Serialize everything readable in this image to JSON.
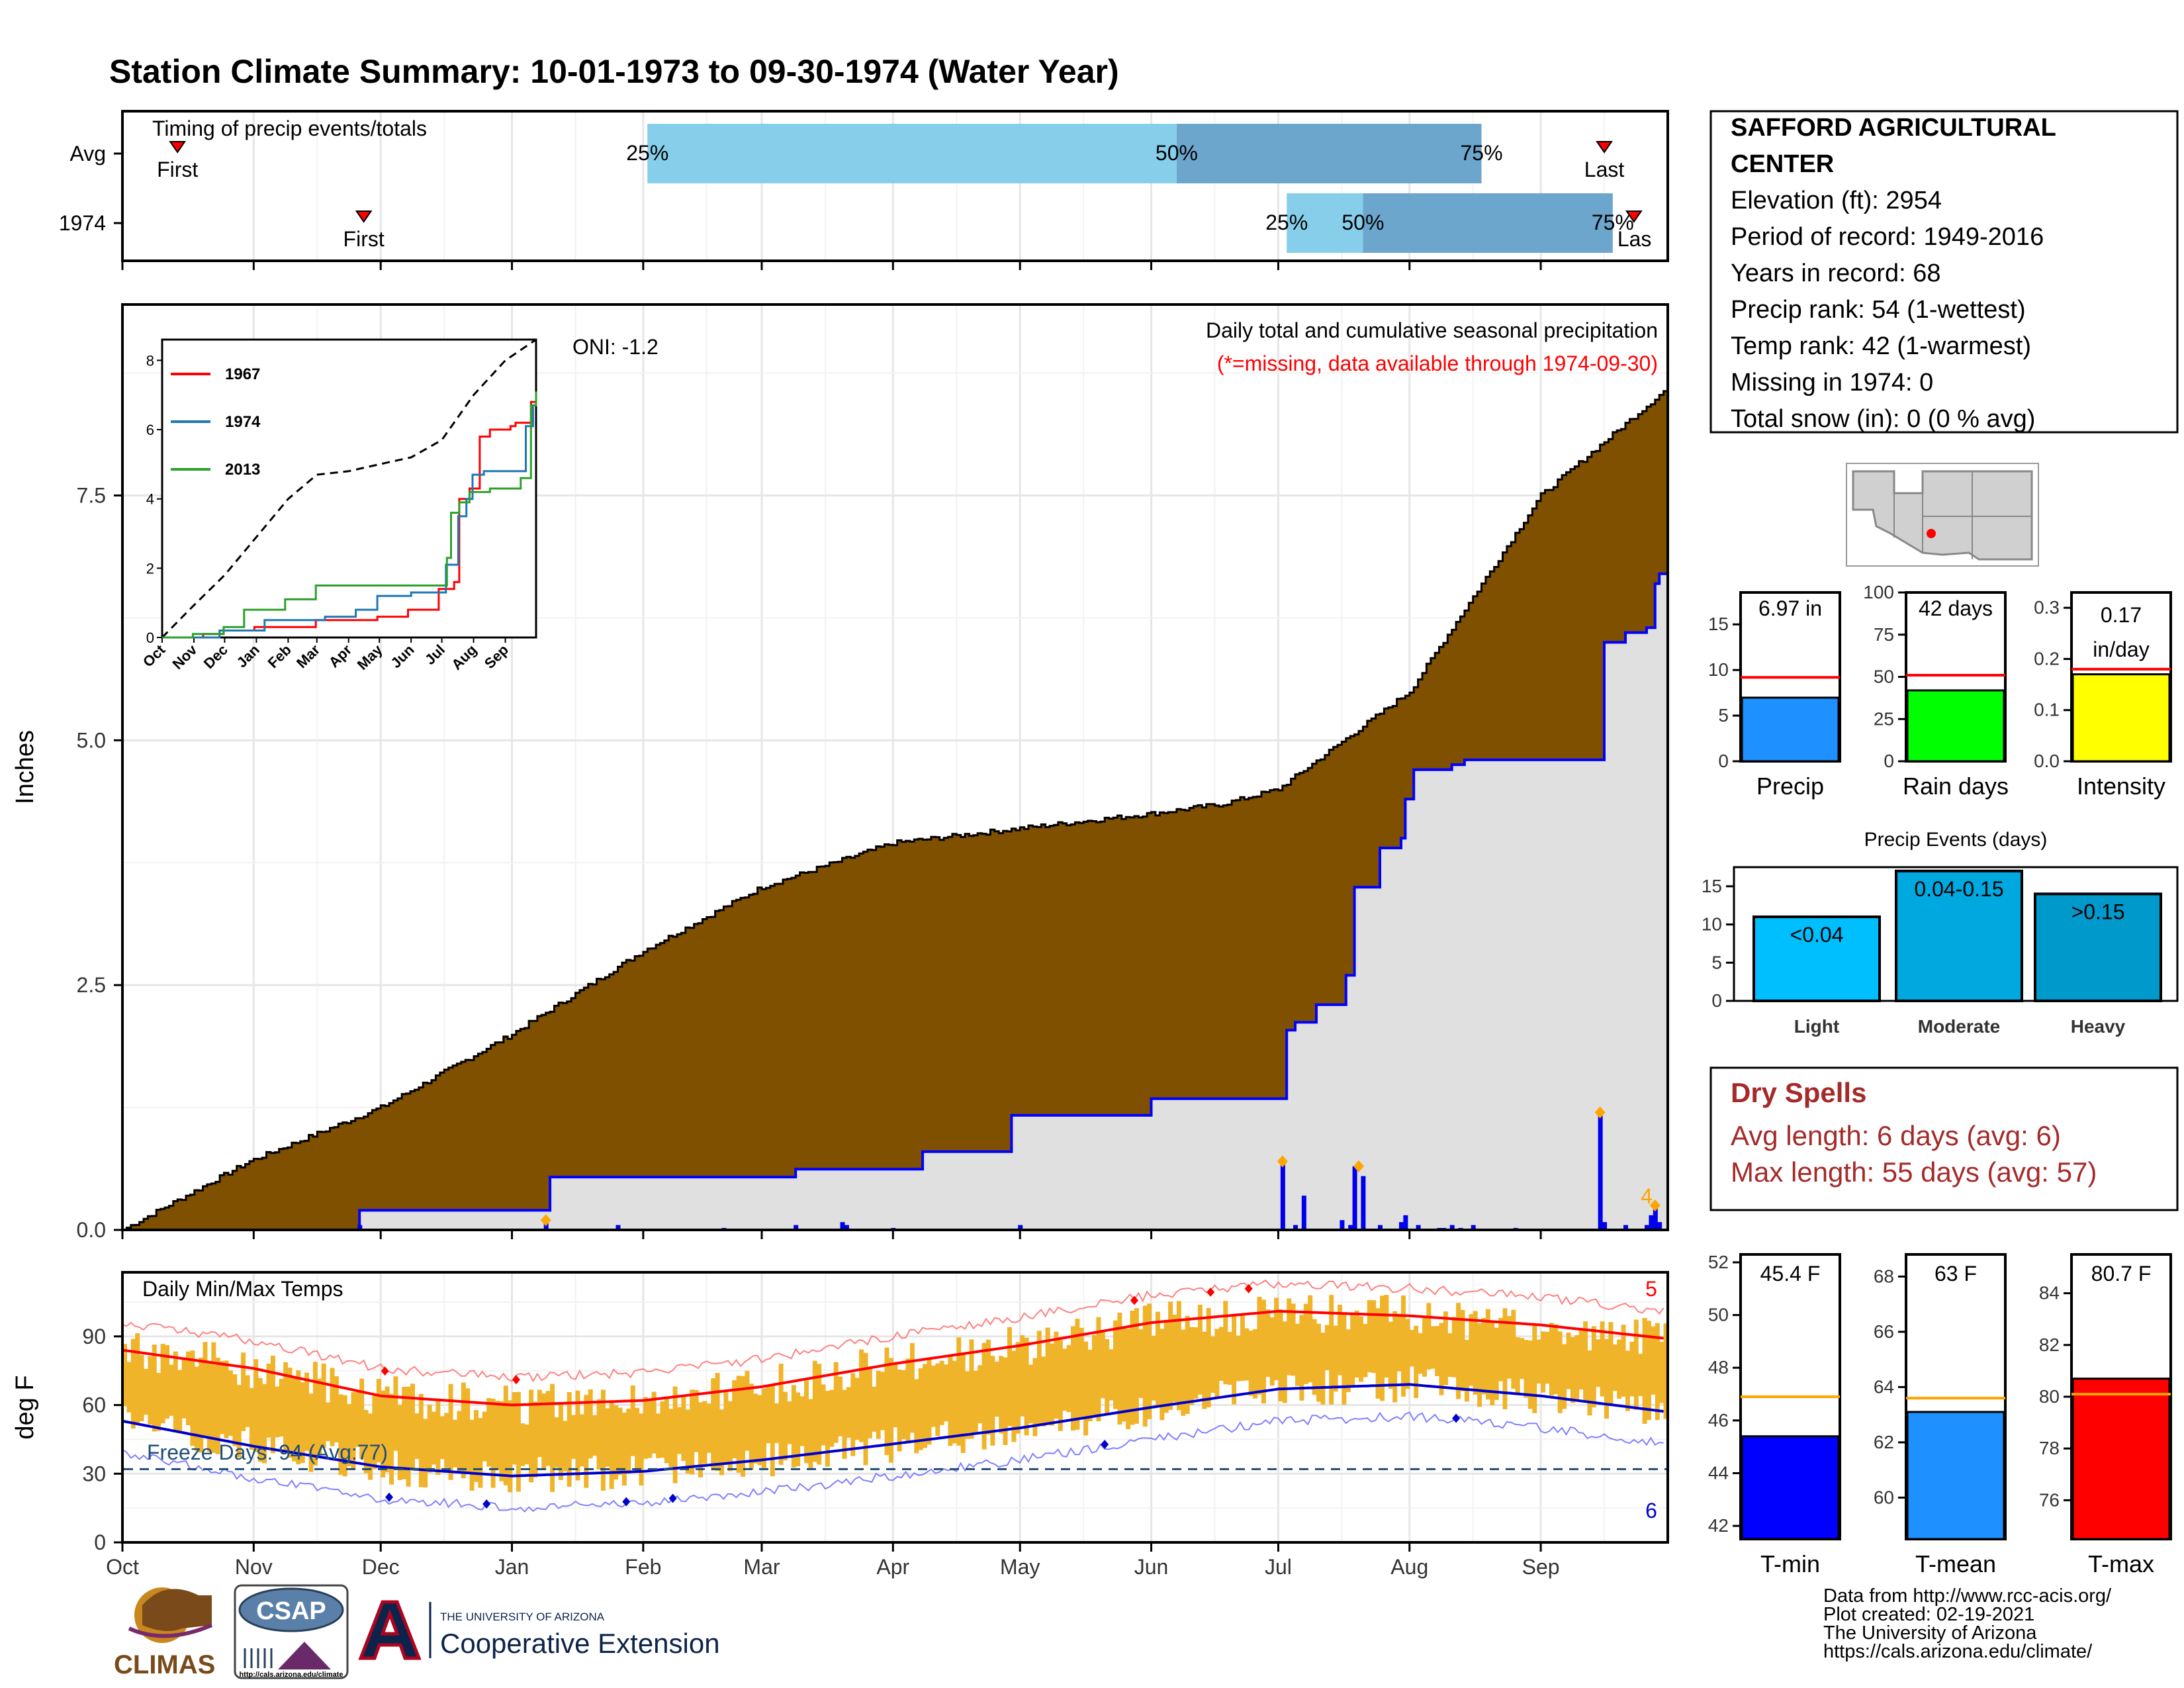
{
  "title": "Station Climate Summary: 10-01-1973 to 09-30-1974 (Water Year)",
  "colors": {
    "title": "#8B2500",
    "cumAvg": "#7f5000",
    "cumYear": "#0000ff",
    "anomFill": "#e0e0e0",
    "tempBar": "#f0b42a",
    "tmaxLine": "#ff0000",
    "tminLine": "#0000cc",
    "pctLight": "#87ceeb",
    "pctDark": "#6ca6cd",
    "dryText": "#a52a2a",
    "freeze": "#1f4e79"
  },
  "months": [
    "Oct",
    "Nov",
    "Dec",
    "Jan",
    "Feb",
    "Mar",
    "Apr",
    "May",
    "Jun",
    "Jul",
    "Aug",
    "Sep"
  ],
  "timing": {
    "label": "Timing of precip events/totals",
    "rows": [
      "Avg",
      "1974"
    ],
    "avg": {
      "first_label": "First",
      "last_label": "Last",
      "first_day": 13,
      "last_day": 350,
      "p25_day": 124,
      "p50_day": 249,
      "p75_day": 321,
      "p25_label": "25%",
      "p50_label": "50%",
      "p75_label": "75%"
    },
    "year": {
      "first_label": "First",
      "last_label": "Las",
      "first_day": 57,
      "last_day": 357,
      "p25_day": 275,
      "p50_day": 293,
      "p75_day": 352,
      "p25_label": "25%",
      "p50_label": "50%",
      "p75_label": "75%"
    }
  },
  "precip": {
    "ylabel": "Inches",
    "yticks": [
      "0.0",
      "2.5",
      "5.0",
      "7.5"
    ],
    "ylim": [
      0,
      9.45
    ],
    "oni_label": "ONI: -1.2",
    "caption": "Daily total and cumulative seasonal precipitation",
    "missing_note": "(*=missing, data available through 1974-09-30)",
    "count_label": "4",
    "avg_cumulative": {
      "x": [
        0,
        30,
        61,
        92,
        123,
        151,
        182,
        212,
        243,
        260,
        273,
        304,
        335,
        365
      ],
      "y": [
        0,
        0.7,
        1.25,
        2.0,
        2.85,
        3.5,
        3.95,
        4.1,
        4.25,
        4.35,
        4.5,
        5.5,
        7.5,
        8.6
      ]
    },
    "year_cumulative": {
      "x": [
        0,
        56,
        100,
        101,
        159,
        189,
        210,
        243,
        274,
        275,
        277,
        282,
        289,
        291,
        297,
        302,
        303,
        305,
        314,
        317,
        349,
        350,
        355,
        360,
        362,
        363,
        365
      ],
      "y": [
        0,
        0.2,
        0.2,
        0.54,
        0.62,
        0.8,
        1.17,
        1.34,
        1.34,
        2.04,
        2.12,
        2.3,
        2.6,
        3.5,
        3.9,
        4.0,
        4.4,
        4.7,
        4.75,
        4.8,
        4.8,
        6.0,
        6.1,
        6.15,
        6.6,
        6.7,
        6.95
      ]
    },
    "daily": {
      "x": [
        56,
        100,
        117,
        142,
        159,
        170,
        171,
        182,
        212,
        274,
        277,
        279,
        288,
        290,
        291,
        293,
        297,
        302,
        303,
        306,
        311,
        312,
        314,
        316,
        319,
        329,
        349,
        350,
        355,
        360,
        361,
        362,
        363
      ],
      "y": [
        0.05,
        0.1,
        0.05,
        0.02,
        0.05,
        0.08,
        0.05,
        0.02,
        0.05,
        0.7,
        0.05,
        0.35,
        0.1,
        0.05,
        0.65,
        0.55,
        0.05,
        0.08,
        0.15,
        0.05,
        0.02,
        0.02,
        0.05,
        0.02,
        0.05,
        0.02,
        1.2,
        0.08,
        0.05,
        0.05,
        0.15,
        0.25,
        0.08
      ]
    },
    "highlight_days": [
      100,
      274,
      292,
      349,
      362
    ]
  },
  "inset": {
    "yticks": [
      "0",
      "2",
      "4",
      "6",
      "8"
    ],
    "months": [
      "Oct",
      "Nov",
      "Dec",
      "Jan",
      "Feb",
      "Mar",
      "Apr",
      "May",
      "Jun",
      "Jul",
      "Aug",
      "Sep"
    ],
    "legend": [
      {
        "name": "1967",
        "color": "#ff0000"
      },
      {
        "name": "1974",
        "color": "#1f77b4"
      },
      {
        "name": "2013",
        "color": "#2ca02c"
      }
    ],
    "avg": {
      "x": [
        0,
        30,
        61,
        92,
        123,
        151,
        182,
        212,
        243,
        273,
        304,
        335,
        365
      ],
      "y": [
        0,
        0.9,
        1.8,
        2.9,
        4.0,
        4.7,
        4.8,
        5.0,
        5.2,
        5.7,
        7.0,
        8.0,
        8.6
      ]
    },
    "series": [
      {
        "name": "1967",
        "x": [
          0,
          40,
          60,
          90,
          120,
          150,
          180,
          210,
          240,
          270,
          280,
          285,
          290,
          300,
          310,
          320,
          340,
          345,
          360,
          365
        ],
        "y": [
          0,
          0.1,
          0.2,
          0.3,
          0.3,
          0.5,
          0.5,
          0.6,
          0.8,
          1.4,
          1.4,
          1.6,
          4.0,
          4.3,
          5.8,
          6.0,
          6.1,
          6.2,
          6.8,
          7.1
        ]
      },
      {
        "name": "1974",
        "x": [
          0,
          56,
          100,
          159,
          189,
          210,
          243,
          274,
          277,
          289,
          297,
          303,
          314,
          349,
          355,
          362,
          365
        ],
        "y": [
          0,
          0.2,
          0.5,
          0.6,
          0.8,
          1.2,
          1.3,
          1.3,
          2.1,
          3.5,
          4.0,
          4.7,
          4.8,
          4.8,
          6.1,
          6.7,
          7.0
        ]
      },
      {
        "name": "2013",
        "x": [
          0,
          30,
          60,
          80,
          120,
          150,
          180,
          210,
          240,
          270,
          278,
          282,
          290,
          300,
          320,
          350,
          360,
          365
        ],
        "y": [
          0,
          0.1,
          0.3,
          0.8,
          1.1,
          1.5,
          1.5,
          1.5,
          1.5,
          1.5,
          2.3,
          3.6,
          3.9,
          4.2,
          4.3,
          4.6,
          6.7,
          7.1
        ]
      }
    ]
  },
  "temps": {
    "label": "Daily Min/Max Temps",
    "ylabel": "deg F",
    "yticks": [
      "0",
      "30",
      "60",
      "90"
    ],
    "ylim": [
      0,
      118
    ],
    "freeze_label": "Freeze Days: 94 (Avg:77)",
    "freeze_threshold": 32,
    "max_count": "5",
    "min_count": "6",
    "avg_tmax": {
      "x": [
        0,
        31,
        61,
        92,
        123,
        151,
        182,
        212,
        243,
        273,
        304,
        335,
        365
      ],
      "y": [
        84,
        76,
        64,
        60,
        62,
        68,
        78,
        86,
        96,
        101,
        99,
        95,
        89
      ]
    },
    "avg_tmin": {
      "x": [
        0,
        31,
        61,
        92,
        123,
        151,
        182,
        212,
        243,
        273,
        304,
        335,
        365
      ],
      "y": [
        53,
        42,
        33,
        29,
        31,
        36,
        43,
        50,
        59,
        67,
        69,
        64,
        57
      ]
    },
    "max_record_days": [
      62,
      93,
      239,
      257,
      266
    ],
    "min_record_days": [
      63,
      86,
      119,
      130,
      232,
      315
    ]
  },
  "station": {
    "name1": "SAFFORD AGRICULTURAL",
    "name2": "CENTER",
    "lines": [
      "Elevation (ft): 2954",
      "Period of record: 1949-2016",
      "Years in record: 68",
      "Precip rank: 54 (1-wettest)",
      "Temp rank: 42 (1-warmest)",
      "Missing in 1974: 0",
      "Total snow (in): 0 (0 % avg)"
    ]
  },
  "stats": {
    "precip": {
      "value": 6.97,
      "value_label": "6.97 in",
      "avg": 9.2,
      "yticks": [
        "0",
        "5",
        "10",
        "15"
      ],
      "ymax": 18.5,
      "label": "Precip",
      "color": "#1e90ff"
    },
    "raindays": {
      "value": 42,
      "value_label": "42 days",
      "avg": 51,
      "yticks": [
        "0",
        "25",
        "50",
        "75",
        "100"
      ],
      "ymax": 100,
      "label": "Rain days",
      "color": "#00ff00"
    },
    "intensity": {
      "value": 0.17,
      "value_label1": "0.17",
      "value_label2": "in/day",
      "avg": 0.18,
      "yticks": [
        "0.0",
        "0.1",
        "0.2",
        "0.3"
      ],
      "ymax": 0.33,
      "label": "Intensity",
      "color": "#ffff00"
    }
  },
  "events": {
    "title": "Precip Events (days)",
    "yticks": [
      "0",
      "5",
      "10",
      "15"
    ],
    "ymax": 17.5,
    "categories": [
      "Light",
      "Moderate",
      "Heavy"
    ],
    "values": [
      11,
      17,
      14
    ],
    "labels": [
      "<0.04",
      "0.04-0.15",
      ">0.15"
    ],
    "colors": [
      "#00bfff",
      "#00a8e0",
      "#0099cc"
    ]
  },
  "dry": {
    "title": "Dry Spells",
    "line1": "Avg length: 6 days (avg: 6)",
    "line2": "Max length: 55 days (avg: 57)"
  },
  "temp_stats": [
    {
      "label": "T-min",
      "value_label": "45.4 F",
      "value": 45.4,
      "avg": 46.9,
      "ylim": [
        41.5,
        52.3
      ],
      "yticks": [
        "42",
        "44",
        "46",
        "48",
        "50",
        "52"
      ],
      "ytick_values": [
        42,
        44,
        46,
        48,
        50,
        52
      ],
      "color": "#0000ff"
    },
    {
      "label": "T-mean",
      "value_label": "63 F",
      "value": 63.1,
      "avg": 63.6,
      "ylim": [
        58.5,
        68.8
      ],
      "yticks": [
        "60",
        "62",
        "64",
        "66",
        "68"
      ],
      "ytick_values": [
        60,
        62,
        64,
        66,
        68
      ],
      "color": "#1e90ff"
    },
    {
      "label": "T-max",
      "value_label": "80.7 F",
      "value": 80.7,
      "avg": 80.1,
      "ylim": [
        74.5,
        85.5
      ],
      "yticks": [
        "76",
        "78",
        "80",
        "82",
        "84"
      ],
      "ytick_values": [
        76,
        78,
        80,
        82,
        84
      ],
      "color": "#ff0000"
    }
  ],
  "credits": [
    "Data from http://www.rcc-acis.org/",
    "Plot created: 02-19-2021",
    "The University of Arizona",
    "https://cals.arizona.edu/climate/"
  ],
  "logos": {
    "climas": "CLIMAS",
    "csap": "CSAP",
    "csap_url": "http://cals.arizona.edu/climate",
    "ua_small": "THE UNIVERSITY OF ARIZONA",
    "ua_big": "Cooperative Extension"
  }
}
